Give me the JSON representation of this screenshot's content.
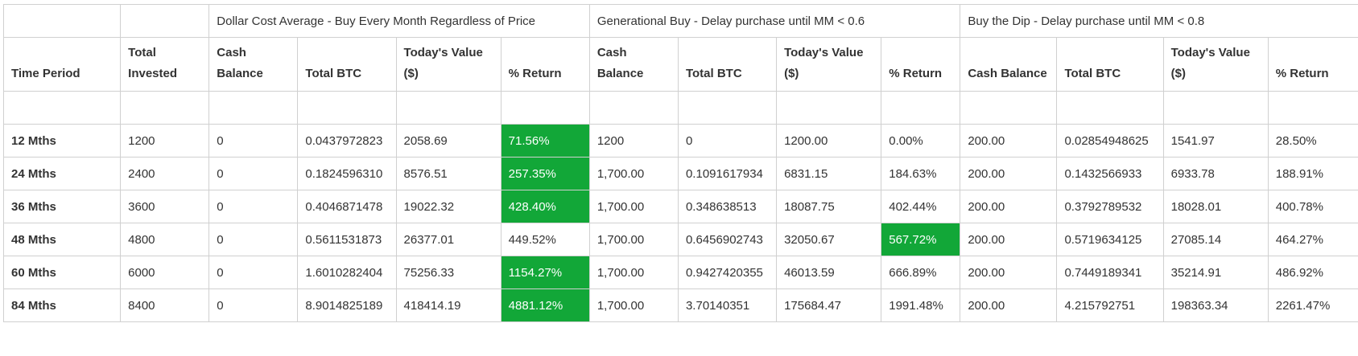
{
  "groups": [
    {
      "label": ""
    },
    {
      "label": ""
    },
    {
      "label": "Dollar Cost Average - Buy Every Month Regardless of Price"
    },
    {
      "label": "Generational Buy - Delay purchase until MM < 0.6"
    },
    {
      "label": "Buy the Dip - Delay purchase until MM < 0.8"
    }
  ],
  "headers": [
    "Time Period",
    "Total Invested",
    "Cash Balance",
    "Total BTC",
    "Today's Value ($)",
    "% Return",
    "Cash Balance",
    "Total BTC",
    "Today's Value ($)",
    "% Return",
    "Cash Balance",
    "Total BTC",
    "Today's Value ($)",
    "% Return"
  ],
  "highlight_color": "#12a738",
  "rows": [
    {
      "cells": [
        "12 Mths",
        "1200",
        "0",
        "0.0437972823",
        "2058.69",
        "71.56%",
        "1200",
        "0",
        "1200.00",
        "0.00%",
        "200.00",
        "0.02854948625",
        "1541.97",
        "28.50%"
      ],
      "highlight": [
        5
      ]
    },
    {
      "cells": [
        "24 Mths",
        "2400",
        "0",
        "0.1824596310",
        "8576.51",
        "257.35%",
        "1,700.00",
        "0.1091617934",
        "6831.15",
        "184.63%",
        "200.00",
        "0.1432566933",
        "6933.78",
        "188.91%"
      ],
      "highlight": [
        5
      ]
    },
    {
      "cells": [
        "36 Mths",
        "3600",
        "0",
        "0.4046871478",
        "19022.32",
        "428.40%",
        "1,700.00",
        "0.348638513",
        "18087.75",
        "402.44%",
        "200.00",
        "0.3792789532",
        "18028.01",
        "400.78%"
      ],
      "highlight": [
        5
      ]
    },
    {
      "cells": [
        "48 Mths",
        "4800",
        "0",
        "0.5611531873",
        "26377.01",
        "449.52%",
        "1,700.00",
        "0.6456902743",
        "32050.67",
        "567.72%",
        "200.00",
        "0.5719634125",
        "27085.14",
        "464.27%"
      ],
      "highlight": [
        9
      ]
    },
    {
      "cells": [
        "60 Mths",
        "6000",
        "0",
        "1.6010282404",
        "75256.33",
        "1154.27%",
        "1,700.00",
        "0.9427420355",
        "46013.59",
        "666.89%",
        "200.00",
        "0.7449189341",
        "35214.91",
        "486.92%"
      ],
      "highlight": [
        5
      ]
    },
    {
      "cells": [
        "84 Mths",
        "8400",
        "0",
        "8.9014825189",
        "418414.19",
        "4881.12%",
        "1,700.00",
        "3.70140351",
        "175684.47",
        "1991.48%",
        "200.00",
        "4.215792751",
        "198363.34",
        "2261.47%"
      ],
      "highlight": [
        5
      ]
    }
  ]
}
